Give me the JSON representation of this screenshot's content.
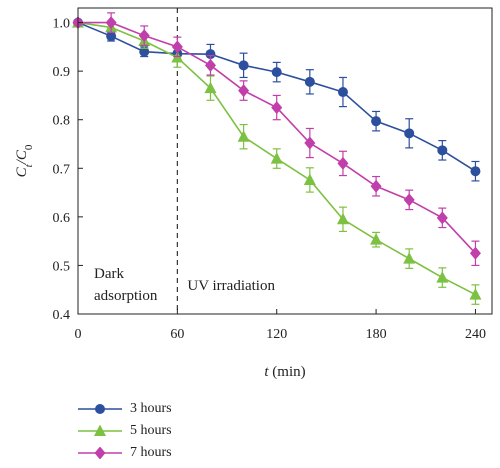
{
  "chart_data": {
    "type": "line",
    "xlabel_main": "t",
    "xlabel_unit": " (min)",
    "ylabel_main": "C",
    "ylabel_sub1": "t",
    "ylabel_slash": "/C",
    "ylabel_sub2": "0",
    "xlim": [
      0,
      250
    ],
    "ylim": [
      0.4,
      1.03
    ],
    "xticks": [
      0,
      60,
      120,
      180,
      240
    ],
    "yticks": [
      0.4,
      0.5,
      0.6,
      0.7,
      0.8,
      0.9,
      1.0
    ],
    "ytick_labels": [
      "0.4",
      "0.5",
      "0.6",
      "0.7",
      "0.8",
      "0.9",
      "1.0"
    ],
    "divider_x": 60,
    "annotations": {
      "dark_line1": "Dark",
      "dark_line2": "adsorption",
      "uv": "UV irradiation"
    },
    "series": [
      {
        "name": "3 hours",
        "color": "#2c4f9e",
        "marker": "circle",
        "x": [
          0,
          20,
          40,
          60,
          80,
          100,
          120,
          140,
          160,
          180,
          200,
          220,
          240
        ],
        "y": [
          1.0,
          0.972,
          0.94,
          0.936,
          0.935,
          0.912,
          0.898,
          0.878,
          0.857,
          0.797,
          0.772,
          0.737,
          0.694
        ],
        "err": [
          0.005,
          0.01,
          0.01,
          0.015,
          0.02,
          0.025,
          0.02,
          0.025,
          0.03,
          0.02,
          0.03,
          0.02,
          0.02
        ]
      },
      {
        "name": "5 hours",
        "color": "#7dc142",
        "marker": "triangle",
        "x": [
          0,
          20,
          40,
          60,
          80,
          100,
          120,
          140,
          160,
          180,
          200,
          220,
          240
        ],
        "y": [
          1.0,
          0.99,
          0.962,
          0.928,
          0.865,
          0.765,
          0.72,
          0.676,
          0.595,
          0.553,
          0.514,
          0.475,
          0.44
        ],
        "err": [
          0.005,
          0.01,
          0.015,
          0.02,
          0.025,
          0.025,
          0.02,
          0.025,
          0.025,
          0.015,
          0.02,
          0.02,
          0.02
        ]
      },
      {
        "name": "7 hours",
        "color": "#c13faa",
        "marker": "diamond",
        "x": [
          0,
          20,
          40,
          60,
          80,
          100,
          120,
          140,
          160,
          180,
          200,
          220,
          240
        ],
        "y": [
          1.0,
          1.0,
          0.973,
          0.95,
          0.912,
          0.86,
          0.825,
          0.752,
          0.71,
          0.663,
          0.635,
          0.598,
          0.525
        ],
        "err": [
          0.005,
          0.02,
          0.02,
          0.02,
          0.02,
          0.02,
          0.025,
          0.03,
          0.025,
          0.02,
          0.02,
          0.02,
          0.025
        ]
      }
    ]
  }
}
